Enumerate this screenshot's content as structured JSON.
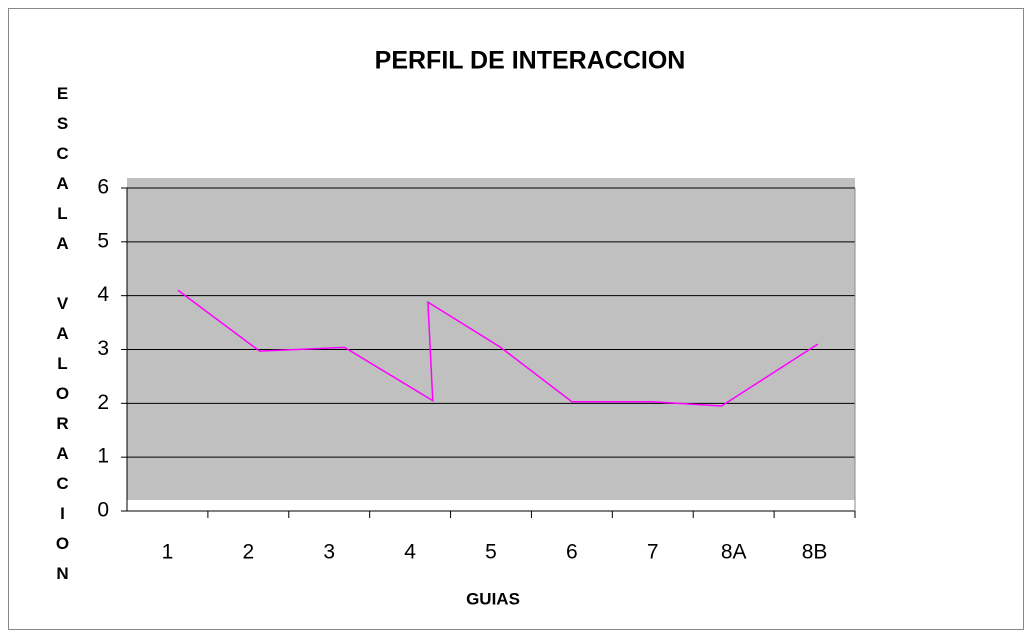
{
  "chart_data": {
    "type": "line",
    "title": "PERFIL DE INTERACCION",
    "x_label": "GUIAS",
    "y_label": "ESCALA VALORACION",
    "xlim": [
      0,
      9
    ],
    "xticks": [
      {
        "value": 0.5,
        "label": "1"
      },
      {
        "value": 1.5,
        "label": "2"
      },
      {
        "value": 2.5,
        "label": "3"
      },
      {
        "value": 3.5,
        "label": "4"
      },
      {
        "value": 4.5,
        "label": "5"
      },
      {
        "value": 5.5,
        "label": "6"
      },
      {
        "value": 6.5,
        "label": "7"
      },
      {
        "value": 7.5,
        "label": "8A"
      },
      {
        "value": 8.5,
        "label": "8B"
      }
    ],
    "ylim": [
      0,
      6
    ],
    "yticks": [
      0,
      1,
      2,
      3,
      4,
      5,
      6
    ],
    "grid": true,
    "series": [
      {
        "color": "#ff00ff",
        "x": [
          0.63,
          1.64,
          2.69,
          3.78,
          3.72,
          4.61,
          5.5,
          6.49,
          7.35,
          8.54
        ],
        "values": [
          4.1,
          2.97,
          3.04,
          2.05,
          3.88,
          3.05,
          2.03,
          2.03,
          1.95,
          3.1
        ]
      }
    ]
  }
}
